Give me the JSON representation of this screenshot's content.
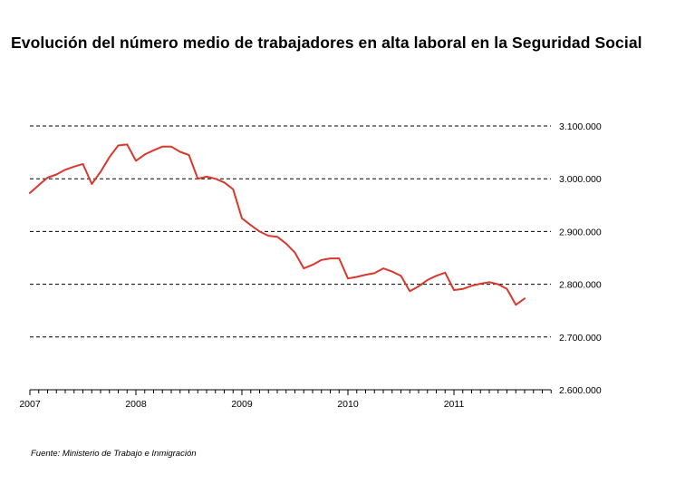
{
  "title": "Evolución del número medio de trabajadores en alta laboral en la Seguridad Social",
  "source": "Fuente: Ministerio de Trabajo e Inmigración",
  "chart_data": {
    "type": "line",
    "title": "Evolución del número medio de trabajadores en alta laboral en la Seguridad Social",
    "xlabel": "",
    "ylabel": "",
    "x_tick_labels": [
      "2007",
      "2008",
      "2009",
      "2010",
      "2011"
    ],
    "y_tick_labels": [
      "3.100.000",
      "3.000.000",
      "2.900.000",
      "2.800.000",
      "2.700.000",
      "2.600.000"
    ],
    "ylim": [
      2600000,
      3100000
    ],
    "xlim": [
      "2007-01",
      "2011-12"
    ],
    "grid": "horizontal dashed",
    "y_axis_position": "right",
    "series": [
      {
        "color": "#d9382c",
        "x": [
          "2007-01",
          "2007-02",
          "2007-03",
          "2007-04",
          "2007-05",
          "2007-06",
          "2007-07",
          "2007-08",
          "2007-09",
          "2007-10",
          "2007-11",
          "2007-12",
          "2008-01",
          "2008-02",
          "2008-03",
          "2008-04",
          "2008-05",
          "2008-06",
          "2008-07",
          "2008-08",
          "2008-09",
          "2008-10",
          "2008-11",
          "2008-12",
          "2009-01",
          "2009-02",
          "2009-03",
          "2009-04",
          "2009-05",
          "2009-06",
          "2009-07",
          "2009-08",
          "2009-09",
          "2009-10",
          "2009-11",
          "2009-12",
          "2010-01",
          "2010-02",
          "2010-03",
          "2010-04",
          "2010-05",
          "2010-06",
          "2010-07",
          "2010-08",
          "2010-09",
          "2010-10",
          "2010-11",
          "2010-12",
          "2011-01",
          "2011-02",
          "2011-03",
          "2011-04",
          "2011-05",
          "2011-06",
          "2011-07",
          "2011-08",
          "2011-09"
        ],
        "values": [
          2973000,
          2988000,
          3002000,
          3008000,
          3017000,
          3023000,
          3028000,
          2990000,
          3013000,
          3041000,
          3063000,
          3065000,
          3034000,
          3046000,
          3054000,
          3061000,
          3061000,
          3051000,
          3045000,
          3000000,
          3004000,
          3000000,
          2993000,
          2980000,
          2925000,
          2912000,
          2900000,
          2892000,
          2890000,
          2877000,
          2860000,
          2830000,
          2837000,
          2846000,
          2849000,
          2849000,
          2811000,
          2814000,
          2818000,
          2821000,
          2830000,
          2824000,
          2816000,
          2787000,
          2796000,
          2808000,
          2816000,
          2822000,
          2789000,
          2791000,
          2797000,
          2801000,
          2804000,
          2800000,
          2791000,
          2761000,
          2773000
        ]
      }
    ]
  }
}
